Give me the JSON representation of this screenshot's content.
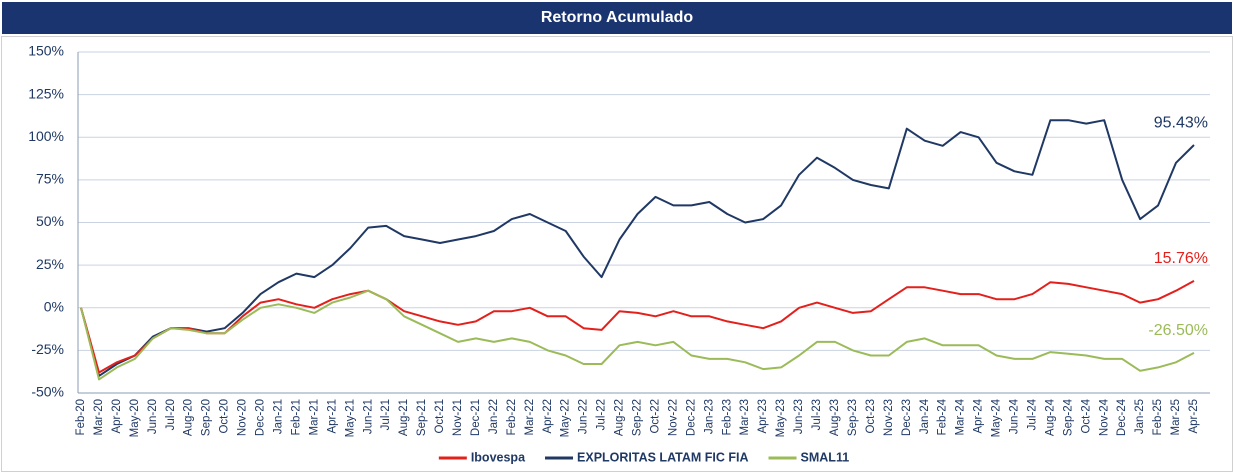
{
  "chart_data": {
    "type": "line",
    "title": "Retorno Acumulado",
    "categories": [
      "Feb-20",
      "Mar-20",
      "Apr-20",
      "May-20",
      "Jun-20",
      "Jul-20",
      "Aug-20",
      "Sep-20",
      "Oct-20",
      "Nov-20",
      "Dec-20",
      "Jan-21",
      "Feb-21",
      "Mar-21",
      "Apr-21",
      "May-21",
      "Jun-21",
      "Jul-21",
      "Aug-21",
      "Sep-21",
      "Oct-21",
      "Nov-21",
      "Dec-21",
      "Jan-22",
      "Feb-22",
      "Mar-22",
      "Apr-22",
      "May-22",
      "Jun-22",
      "Jul-22",
      "Aug-22",
      "Sep-22",
      "Oct-22",
      "Nov-22",
      "Dec-22",
      "Jan-23",
      "Feb-23",
      "Mar-23",
      "Apr-23",
      "May-23",
      "Jun-23",
      "Jul-23",
      "Aug-23",
      "Sep-23",
      "Oct-23",
      "Nov-23",
      "Dec-23",
      "Jan-24",
      "Feb-24",
      "Mar-24",
      "Apr-24",
      "May-24",
      "Jun-24",
      "Jul-24",
      "Aug-24",
      "Sep-24",
      "Oct-24",
      "Nov-24",
      "Dec-24",
      "Jan-25",
      "Feb-25",
      "Mar-25",
      "Apr-25"
    ],
    "series": [
      {
        "name": "Ibovespa",
        "color": "#e3201b",
        "values": [
          0,
          -38,
          -32,
          -28,
          -18,
          -12,
          -12,
          -15,
          -15,
          -5,
          3,
          5,
          2,
          0,
          5,
          8,
          10,
          5,
          -2,
          -5,
          -8,
          -10,
          -8,
          -2,
          -2,
          0,
          -5,
          -5,
          -12,
          -13,
          -2,
          -3,
          -5,
          -2,
          -5,
          -5,
          -8,
          -10,
          -12,
          -8,
          0,
          3,
          0,
          -3,
          -2,
          5,
          12,
          12,
          10,
          8,
          8,
          5,
          5,
          8,
          15,
          14,
          12,
          10,
          8,
          3,
          5,
          10,
          15.76
        ],
        "value_labels": [
          null,
          null,
          null,
          null,
          null,
          null,
          null,
          null,
          null,
          null,
          null,
          null,
          null,
          null,
          null,
          null,
          null,
          null,
          null,
          null,
          null,
          null,
          null,
          null,
          null,
          null,
          null,
          null,
          null,
          null,
          null,
          null,
          null,
          null,
          null,
          null,
          null,
          null,
          null,
          null,
          null,
          null,
          null,
          null,
          null,
          null,
          null,
          null,
          null,
          null,
          null,
          null,
          null,
          null,
          null,
          null,
          null,
          null,
          null,
          null,
          null,
          null,
          "15.76%"
        ]
      },
      {
        "name": "EXPLORITAS LATAM FIC FIA",
        "color": "#1f3864",
        "values": [
          0,
          -40,
          -33,
          -28,
          -17,
          -12,
          -12,
          -14,
          -12,
          -3,
          8,
          15,
          20,
          18,
          25,
          35,
          47,
          48,
          42,
          40,
          38,
          40,
          42,
          45,
          52,
          55,
          50,
          45,
          30,
          18,
          40,
          55,
          65,
          60,
          60,
          62,
          55,
          50,
          52,
          60,
          78,
          88,
          82,
          75,
          72,
          70,
          105,
          98,
          95,
          103,
          100,
          85,
          80,
          78,
          110,
          110,
          108,
          110,
          75,
          52,
          60,
          85,
          95.43
        ],
        "value_labels": [
          null,
          null,
          null,
          null,
          null,
          null,
          null,
          null,
          null,
          null,
          null,
          null,
          null,
          null,
          null,
          null,
          null,
          null,
          null,
          null,
          null,
          null,
          null,
          null,
          null,
          null,
          null,
          null,
          null,
          null,
          null,
          null,
          null,
          null,
          null,
          null,
          null,
          null,
          null,
          null,
          null,
          null,
          null,
          null,
          null,
          null,
          null,
          null,
          null,
          null,
          null,
          null,
          null,
          null,
          null,
          null,
          null,
          null,
          null,
          null,
          null,
          null,
          "95.43%"
        ]
      },
      {
        "name": "SMAL11",
        "color": "#9bbb59",
        "values": [
          0,
          -42,
          -35,
          -30,
          -18,
          -12,
          -13,
          -15,
          -15,
          -7,
          0,
          2,
          0,
          -3,
          3,
          6,
          10,
          5,
          -5,
          -10,
          -15,
          -20,
          -18,
          -20,
          -18,
          -20,
          -25,
          -28,
          -33,
          -33,
          -22,
          -20,
          -22,
          -20,
          -28,
          -30,
          -30,
          -32,
          -36,
          -35,
          -28,
          -20,
          -20,
          -25,
          -28,
          -28,
          -20,
          -18,
          -22,
          -22,
          -22,
          -28,
          -30,
          -30,
          -26,
          -27,
          -28,
          -30,
          -30,
          -37,
          -35,
          -32,
          -26.5
        ],
        "value_labels": [
          null,
          null,
          null,
          null,
          null,
          null,
          null,
          null,
          null,
          null,
          null,
          null,
          null,
          null,
          null,
          null,
          null,
          null,
          null,
          null,
          null,
          null,
          null,
          null,
          null,
          null,
          null,
          null,
          null,
          null,
          null,
          null,
          null,
          null,
          null,
          null,
          null,
          null,
          null,
          null,
          null,
          null,
          null,
          null,
          null,
          null,
          null,
          null,
          null,
          null,
          null,
          null,
          null,
          null,
          null,
          null,
          null,
          null,
          null,
          null,
          null,
          null,
          "-26.50%"
        ]
      }
    ],
    "ylim": [
      -50,
      150
    ],
    "yticks": [
      {
        "value": -50,
        "label": "-50%"
      },
      {
        "value": -25,
        "label": "-25%"
      },
      {
        "value": 0,
        "label": "0%"
      },
      {
        "value": 25,
        "label": "25%"
      },
      {
        "value": 50,
        "label": "50%"
      },
      {
        "value": 75,
        "label": "75%"
      },
      {
        "value": 100,
        "label": "100%"
      },
      {
        "value": 125,
        "label": "125%"
      },
      {
        "value": 150,
        "label": "150%"
      }
    ],
    "grid": true,
    "legend": "bottom"
  }
}
